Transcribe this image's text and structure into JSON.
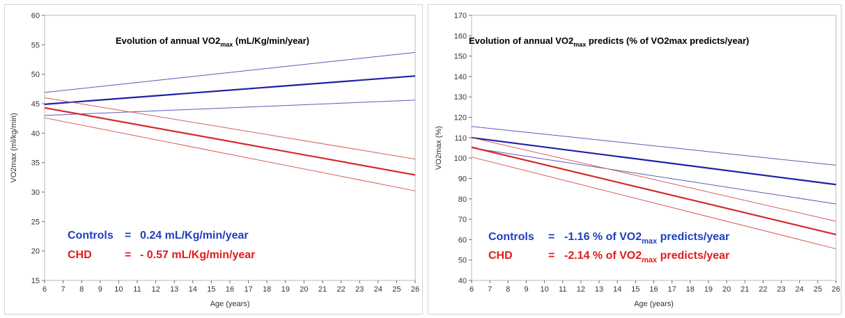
{
  "chart_data": [
    {
      "type": "line",
      "title": "Evolution of annual VO2",
      "title_sub": "max",
      "title_suffix": " (mL/Kg/min/year)",
      "xlabel": "Age (years)",
      "ylabel": "VO2max (ml/kg/min)",
      "xlim": [
        6,
        26
      ],
      "ylim": [
        15,
        60
      ],
      "xticks": [
        6,
        7,
        8,
        9,
        10,
        11,
        12,
        13,
        14,
        15,
        16,
        17,
        18,
        19,
        20,
        21,
        22,
        23,
        24,
        25,
        26
      ],
      "yticks": [
        15,
        20,
        25,
        30,
        35,
        40,
        45,
        50,
        55,
        60
      ],
      "grid": false,
      "series": [
        {
          "x": [
            6,
            26
          ],
          "y": [
            44.9,
            49.7
          ],
          "color": "#1f1fa8",
          "width": 2.2
        },
        {
          "x": [
            6,
            26
          ],
          "y": [
            46.9,
            53.7
          ],
          "color": "#5a5ab8",
          "width": 1
        },
        {
          "x": [
            6,
            26
          ],
          "y": [
            43.0,
            45.6
          ],
          "color": "#5a5ab8",
          "width": 1
        },
        {
          "x": [
            6,
            26
          ],
          "y": [
            44.3,
            32.9
          ],
          "color": "#d42a2a",
          "width": 2.2
        },
        {
          "x": [
            6,
            26
          ],
          "y": [
            46.0,
            35.6
          ],
          "color": "#d95a5a",
          "width": 1
        },
        {
          "x": [
            6,
            26
          ],
          "y": [
            42.6,
            30.2
          ],
          "color": "#d95a5a",
          "width": 1
        }
      ],
      "annotations": [
        {
          "label": "Controls",
          "sep": "=",
          "value": "0.24 mL/Kg/min/year",
          "color": "#1f3fbf",
          "x": 6.8,
          "y": 22.6
        },
        {
          "label": "CHD",
          "sep": "=",
          "value": "- 0.57 mL/Kg/min/year",
          "color": "#e01b1b",
          "x": 6.8,
          "y": 19.4
        }
      ]
    },
    {
      "type": "line",
      "title": "Evolution of annual VO2",
      "title_sub": "max",
      "title_suffix": " predicts (% of VO2max predicts/year)",
      "xlabel": "Age (years)",
      "ylabel": "VO2max (%)",
      "xlim": [
        6,
        26
      ],
      "ylim": [
        40,
        170
      ],
      "xticks": [
        6,
        7,
        8,
        9,
        10,
        11,
        12,
        13,
        14,
        15,
        16,
        17,
        18,
        19,
        20,
        21,
        22,
        23,
        24,
        25,
        26
      ],
      "yticks": [
        40,
        50,
        60,
        70,
        80,
        90,
        100,
        110,
        120,
        130,
        140,
        150,
        160,
        170
      ],
      "grid": false,
      "series": [
        {
          "x": [
            6,
            26
          ],
          "y": [
            110.0,
            87.0
          ],
          "color": "#1f1fa8",
          "width": 2.2
        },
        {
          "x": [
            6,
            26
          ],
          "y": [
            115.5,
            96.5
          ],
          "color": "#5a5ab8",
          "width": 1
        },
        {
          "x": [
            6,
            26
          ],
          "y": [
            105.0,
            77.5
          ],
          "color": "#5a5ab8",
          "width": 1
        },
        {
          "x": [
            6,
            26
          ],
          "y": [
            105.3,
            62.5
          ],
          "color": "#d42a2a",
          "width": 2.2
        },
        {
          "x": [
            6,
            26
          ],
          "y": [
            110.0,
            69.0
          ],
          "color": "#d95a5a",
          "width": 1
        },
        {
          "x": [
            6,
            26
          ],
          "y": [
            100.5,
            55.5
          ],
          "color": "#d95a5a",
          "width": 1
        }
      ],
      "annotations": [
        {
          "label": "Controls",
          "sep": "=",
          "value": "-1.16 % of VO2",
          "sub": "max",
          "suffix": " predicts/year",
          "color": "#1f3fbf",
          "x": 8.1,
          "y": 58.5
        },
        {
          "label": "CHD",
          "sep": "=",
          "value": "-2.14 % of VO2",
          "sub": "max",
          "suffix": " predicts/year",
          "color": "#e01b1b",
          "x": 8.1,
          "y": 50.6
        }
      ]
    }
  ]
}
